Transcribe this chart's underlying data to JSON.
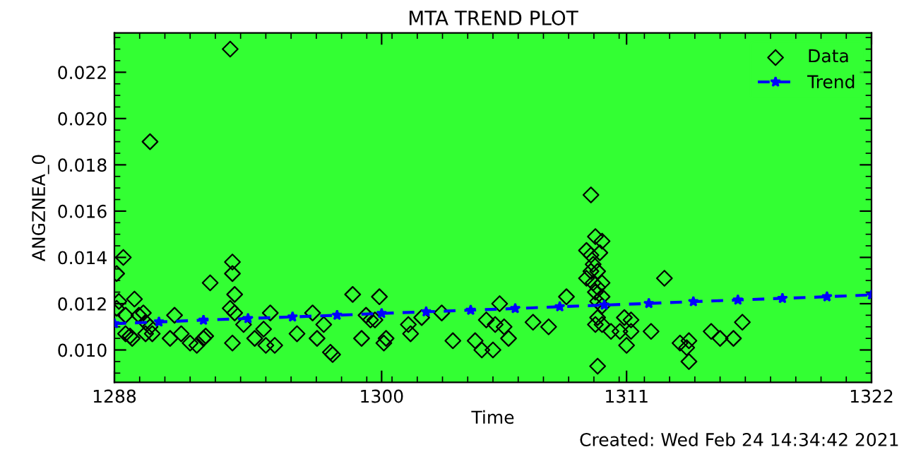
{
  "chart_data": {
    "type": "scatter",
    "title": "MTA TREND PLOT",
    "xlabel": "Time",
    "ylabel": "ANGZNEA_0",
    "annotations": [
      "Created: Wed Feb 24 14:34:42 2021"
    ],
    "xlim": [
      1288,
      1322
    ],
    "ylim": [
      0.0086,
      0.0237
    ],
    "xticks": [
      1288,
      1300,
      1311,
      1322
    ],
    "yticks": [
      {
        "value": 0.01,
        "label": "0.010"
      },
      {
        "value": 0.012,
        "label": "0.012"
      },
      {
        "value": 0.014,
        "label": "0.014"
      },
      {
        "value": 0.016,
        "label": "0.016"
      },
      {
        "value": 0.018,
        "label": "0.018"
      },
      {
        "value": 0.02,
        "label": "0.020"
      },
      {
        "value": 0.022,
        "label": "0.022"
      }
    ],
    "grid": false,
    "legend": "top right",
    "series": [
      {
        "name": "Data",
        "color": "#000000",
        "marker": "diamond",
        "x": [
          1288.1,
          1288.4,
          1288.2,
          1288.1,
          1288.5,
          1288.5,
          1288.7,
          1288.8,
          1288.9,
          1289.1,
          1289.3,
          1289.4,
          1289.4,
          1289.6,
          1289.7,
          1289.6,
          1290.5,
          1290.7,
          1291.0,
          1291.4,
          1291.7,
          1292.0,
          1292.1,
          1292.3,
          1293.2,
          1293.3,
          1293.3,
          1293.3,
          1293.2,
          1293.4,
          1293.4,
          1293.8,
          1294.3,
          1294.7,
          1294.8,
          1295.0,
          1295.2,
          1296.2,
          1297.1,
          1297.4,
          1296.9,
          1297.7,
          1297.8,
          1298.7,
          1299.1,
          1299.3,
          1299.5,
          1299.7,
          1299.9,
          1300.1,
          1300.2,
          1301.2,
          1301.3,
          1301.8,
          1302.7,
          1303.2,
          1304.2,
          1304.5,
          1305.0,
          1304.7,
          1305.1,
          1305.3,
          1305.5,
          1305.7,
          1306.8,
          1307.5,
          1308.3,
          1309.4,
          1309.6,
          1309.9,
          1309.2,
          1309.4,
          1309.8,
          1309.5,
          1309.4,
          1309.7,
          1309.2,
          1309.5,
          1309.9,
          1309.7,
          1309.6,
          1309.9,
          1309.7,
          1309.9,
          1309.7,
          1309.6,
          1309.9,
          1309.7,
          1310.3,
          1310.7,
          1310.9,
          1311.2,
          1311.2,
          1311.0,
          1312.1,
          1312.7,
          1313.4,
          1313.8,
          1313.7,
          1313.8,
          1314.8,
          1315.2,
          1315.8,
          1316.2
        ],
        "values": [
          0.0133,
          0.014,
          0.0121,
          0.0118,
          0.0115,
          0.0107,
          0.0106,
          0.0105,
          0.0122,
          0.0115,
          0.0116,
          0.0112,
          0.0107,
          0.019,
          0.0107,
          0.011,
          0.0105,
          0.0115,
          0.0107,
          0.0103,
          0.0102,
          0.0105,
          0.0106,
          0.0129,
          0.023,
          0.0103,
          0.0138,
          0.0133,
          0.0118,
          0.0124,
          0.0116,
          0.0111,
          0.0105,
          0.0109,
          0.0102,
          0.0116,
          0.0102,
          0.0107,
          0.0105,
          0.0111,
          0.0116,
          0.0099,
          0.0098,
          0.0124,
          0.0105,
          0.0115,
          0.0113,
          0.0113,
          0.0123,
          0.0103,
          0.0105,
          0.0111,
          0.0107,
          0.0114,
          0.0116,
          0.0104,
          0.0104,
          0.01,
          0.01,
          0.0113,
          0.0111,
          0.012,
          0.011,
          0.0105,
          0.0112,
          0.011,
          0.0123,
          0.0167,
          0.0149,
          0.0147,
          0.0143,
          0.0141,
          0.0142,
          0.0137,
          0.0134,
          0.0134,
          0.0131,
          0.0129,
          0.0129,
          0.0127,
          0.0125,
          0.0123,
          0.0121,
          0.0119,
          0.0114,
          0.0111,
          0.0111,
          0.0093,
          0.0108,
          0.0108,
          0.0114,
          0.0113,
          0.0108,
          0.0102,
          0.0108,
          0.0131,
          0.0103,
          0.0104,
          0.0101,
          0.0095,
          0.0108,
          0.0105,
          0.0105,
          0.0112
        ]
      },
      {
        "name": "Trend",
        "type": "line",
        "color": "#0000ff",
        "marker": "star",
        "line_style": "dashed",
        "x": [
          1288,
          1290,
          1292,
          1294,
          1296,
          1298,
          1300,
          1302,
          1304,
          1306,
          1308,
          1310,
          1312,
          1314,
          1316,
          1318,
          1320,
          1322
        ],
        "values": [
          0.01114,
          0.01121,
          0.01129,
          0.01136,
          0.01143,
          0.0115,
          0.01158,
          0.01165,
          0.01172,
          0.01179,
          0.01187,
          0.01194,
          0.01201,
          0.01209,
          0.01216,
          0.01223,
          0.0123,
          0.01238
        ]
      }
    ]
  }
}
